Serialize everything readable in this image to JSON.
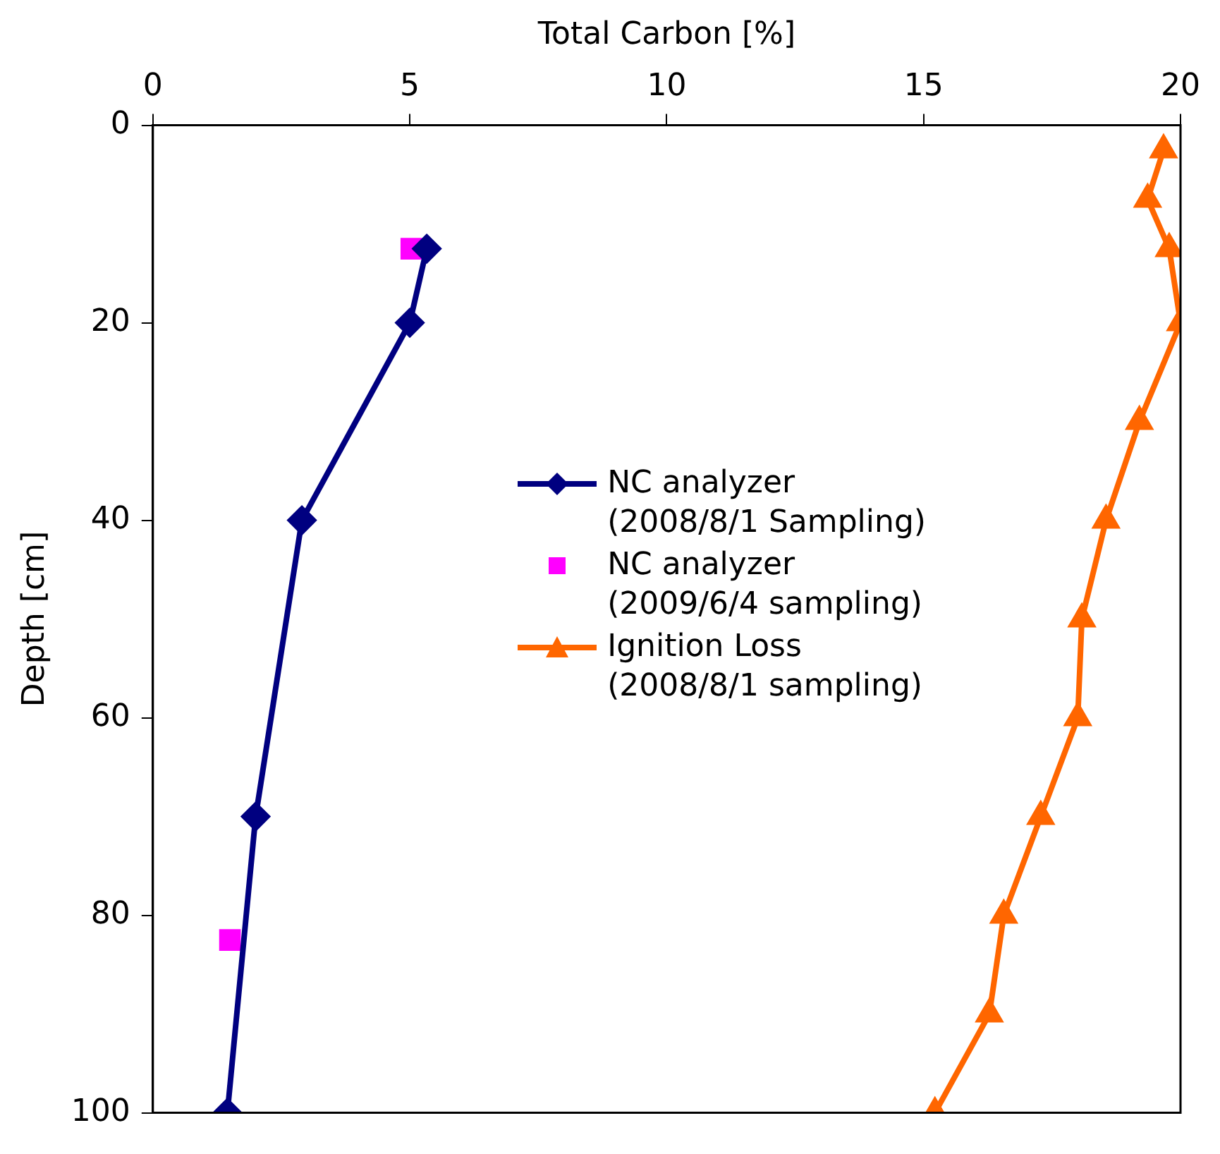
{
  "chart_data": {
    "type": "line",
    "xlabel": "Total Carbon [%]",
    "ylabel": "Depth [cm]",
    "xlim": [
      0,
      20
    ],
    "xticks": [
      0,
      5,
      10,
      15,
      20
    ],
    "ylim": [
      100,
      0
    ],
    "yticks": [
      0,
      20,
      40,
      60,
      80,
      100
    ],
    "grid": false,
    "legend": "center",
    "series": [
      {
        "name": "NC analyzer\n(2008/8/1 Sampling)",
        "marker": "diamond",
        "color": "#000080",
        "x": [
          5.33,
          5.0,
          2.9,
          2.0,
          1.45
        ],
        "values": [
          12.5,
          20,
          40,
          70,
          100
        ]
      },
      {
        "name": "NC analyzer\n(2009/6/4 sampling)",
        "type": "scatter",
        "marker": "square",
        "color": "#ff00ff",
        "x": [
          5.03,
          1.5
        ],
        "values": [
          12.5,
          82.5
        ]
      },
      {
        "name": "Ignition Loss\n(2008/8/1 sampling)",
        "marker": "triangle",
        "color": "#ff6600",
        "x": [
          19.67,
          19.36,
          19.78,
          20.0,
          19.2,
          18.55,
          18.08,
          18.0,
          17.28,
          16.56,
          16.28,
          15.22
        ],
        "values": [
          2.5,
          7.5,
          12.5,
          20,
          30,
          40,
          50,
          60,
          70,
          80,
          90,
          100
        ]
      }
    ]
  }
}
